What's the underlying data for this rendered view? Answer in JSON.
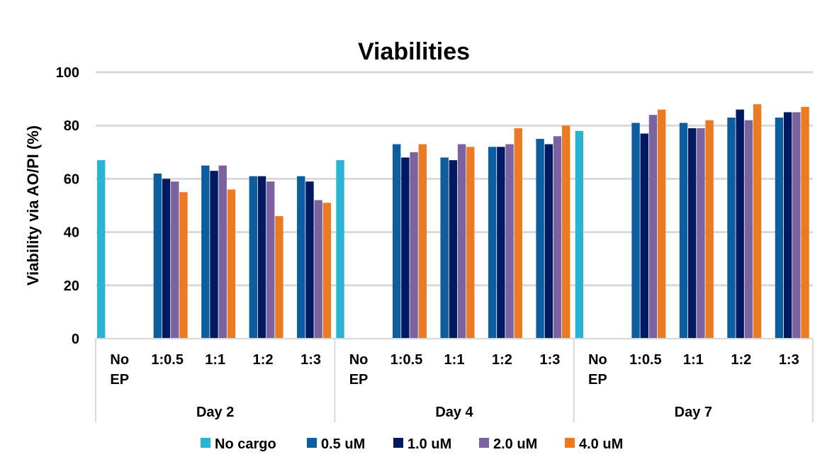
{
  "chart_data": {
    "type": "bar",
    "title": "Viabilities",
    "ylabel": "Viability via AO/PI (%)",
    "xlabel": "",
    "ylim": [
      0,
      100
    ],
    "yticks": [
      "0",
      "20",
      "40",
      "60",
      "80",
      "100"
    ],
    "grid": true,
    "legend_position": "bottom",
    "groups": [
      {
        "label": "Day 2",
        "categories": [
          "No EP",
          "1:0.5",
          "1:1",
          "1:2",
          "1:3"
        ]
      },
      {
        "label": "Day 4",
        "categories": [
          "No EP",
          "1:0.5",
          "1:1",
          "1:2",
          "1:3"
        ]
      },
      {
        "label": "Day 7",
        "categories": [
          "No EP",
          "1:0.5",
          "1:1",
          "1:2",
          "1:3"
        ]
      }
    ],
    "series": [
      {
        "name": "No cargo",
        "color": "#29B4D4",
        "values": [
          67,
          null,
          null,
          null,
          null,
          67,
          null,
          null,
          null,
          null,
          78,
          null,
          null,
          null,
          null
        ]
      },
      {
        "name": "0.5 uM",
        "color": "#0D5E9F",
        "values": [
          null,
          62,
          65,
          61,
          61,
          null,
          73,
          68,
          72,
          75,
          null,
          81,
          81,
          83,
          83
        ]
      },
      {
        "name": "1.0 uM",
        "color": "#001A62",
        "values": [
          null,
          60,
          63,
          61,
          59,
          null,
          68,
          67,
          72,
          73,
          null,
          77,
          79,
          86,
          85
        ]
      },
      {
        "name": "2.0 uM",
        "color": "#7B62A0",
        "values": [
          null,
          59,
          65,
          59,
          52,
          null,
          70,
          73,
          73,
          76,
          null,
          84,
          79,
          82,
          85
        ]
      },
      {
        "name": "4.0 uM",
        "color": "#EC7A23",
        "values": [
          null,
          55,
          56,
          46,
          51,
          null,
          73,
          72,
          79,
          80,
          null,
          86,
          82,
          88,
          87
        ]
      }
    ]
  }
}
